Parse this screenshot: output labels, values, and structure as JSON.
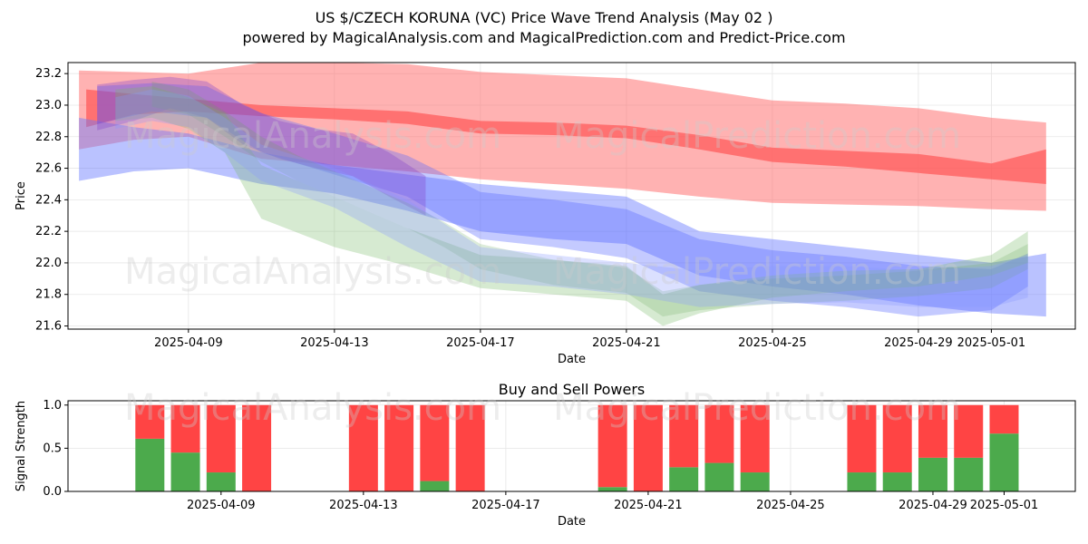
{
  "title": "US $/CZECH KORUNA (VC) Price Wave Trend Analysis (May 02 )",
  "subtitle": "powered by MagicalAnalysis.com and MagicalPrediction.com and Predict-Price.com",
  "watermarks": [
    "MagicalAnalysis.com",
    "MagicalPrediction.com"
  ],
  "chart_data": [
    {
      "type": "area",
      "title": "",
      "xlabel": "Date",
      "ylabel": "Price",
      "ylim": [
        21.58,
        23.27
      ],
      "yticks": [
        21.6,
        21.8,
        22.0,
        22.2,
        22.4,
        22.6,
        22.8,
        23.0,
        23.2
      ],
      "xticks": [
        {
          "day": 3,
          "label": "2025-04-09"
        },
        {
          "day": 7,
          "label": "2025-04-13"
        },
        {
          "day": 11,
          "label": "2025-04-17"
        },
        {
          "day": 15,
          "label": "2025-04-21"
        },
        {
          "day": 19,
          "label": "2025-04-25"
        },
        {
          "day": 23,
          "label": "2025-04-29"
        },
        {
          "day": 25,
          "label": "2025-05-01"
        }
      ],
      "xrange_days": [
        -0.3,
        27.3
      ],
      "grid": true,
      "bands": [
        {
          "name": "red-wide",
          "color": "#ff6666",
          "opacity": 0.5,
          "x": [
            0,
            1.5,
            3,
            5,
            7,
            9,
            11,
            13,
            15,
            17,
            19,
            21,
            23,
            25,
            26.5
          ],
          "upper": [
            23.22,
            23.21,
            23.2,
            23.27,
            23.27,
            23.26,
            23.21,
            23.19,
            23.17,
            23.1,
            23.03,
            23.01,
            22.98,
            22.92,
            22.89
          ],
          "lower": [
            22.72,
            22.78,
            22.8,
            22.66,
            22.62,
            22.58,
            22.53,
            22.5,
            22.47,
            22.42,
            22.38,
            22.37,
            22.36,
            22.34,
            22.33
          ]
        },
        {
          "name": "red-narrow",
          "color": "#ff5555",
          "opacity": 0.7,
          "x": [
            0.2,
            1.5,
            3,
            5,
            7,
            9,
            11,
            13,
            15,
            17,
            19,
            21,
            23,
            25,
            26.5
          ],
          "upper": [
            23.1,
            23.07,
            23.04,
            23.0,
            22.98,
            22.96,
            22.9,
            22.89,
            22.87,
            22.81,
            22.73,
            22.71,
            22.69,
            22.63,
            22.72
          ],
          "lower": [
            22.86,
            22.94,
            22.96,
            22.93,
            22.91,
            22.88,
            22.82,
            22.81,
            22.79,
            22.72,
            22.64,
            22.61,
            22.57,
            22.53,
            22.5
          ]
        },
        {
          "name": "blue-long",
          "color": "#6677ff",
          "opacity": 0.45,
          "x": [
            0,
            1.5,
            3,
            5,
            7,
            9,
            11,
            13,
            15,
            17,
            19,
            21,
            23,
            25,
            26.5
          ],
          "upper": [
            22.92,
            22.86,
            22.82,
            22.7,
            22.62,
            22.56,
            22.5,
            22.46,
            22.42,
            22.2,
            22.15,
            22.1,
            22.05,
            22.0,
            22.06
          ],
          "lower": [
            22.52,
            22.58,
            22.6,
            22.5,
            22.44,
            22.33,
            22.2,
            22.15,
            22.12,
            21.92,
            21.85,
            21.8,
            21.73,
            21.68,
            21.66
          ]
        },
        {
          "name": "blue-mid",
          "color": "#5566ff",
          "opacity": 0.35,
          "x": [
            0.5,
            2,
            3.5,
            5,
            7,
            9,
            11,
            13,
            15,
            17,
            19,
            21,
            23,
            25,
            26
          ],
          "upper": [
            23.12,
            23.14,
            23.12,
            22.95,
            22.82,
            22.68,
            22.45,
            22.4,
            22.34,
            22.15,
            22.08,
            22.04,
            21.98,
            21.96,
            22.06
          ],
          "lower": [
            22.88,
            22.96,
            22.92,
            22.7,
            22.56,
            22.42,
            22.15,
            22.1,
            22.03,
            21.82,
            21.76,
            21.72,
            21.66,
            21.7,
            21.85
          ]
        },
        {
          "name": "purple",
          "color": "#8844cc",
          "opacity": 0.35,
          "x": [
            0.5,
            1.5,
            2.5,
            3.5,
            4.5,
            5.5,
            6.5,
            7.5,
            8.5,
            9.5
          ],
          "upper": [
            23.13,
            23.16,
            23.18,
            23.15,
            23.0,
            22.9,
            22.85,
            22.82,
            22.7,
            22.55
          ],
          "lower": [
            22.84,
            22.9,
            22.98,
            22.92,
            22.75,
            22.66,
            22.6,
            22.55,
            22.42,
            22.3
          ]
        },
        {
          "name": "green-a",
          "color": "#77bb66",
          "opacity": 0.3,
          "x": [
            1,
            2,
            3,
            4,
            5,
            7,
            9,
            11,
            13,
            15,
            16,
            17,
            19,
            21,
            23,
            25,
            26
          ],
          "upper": [
            23.1,
            23.12,
            23.05,
            22.95,
            22.62,
            22.42,
            22.22,
            22.05,
            22.02,
            21.98,
            21.8,
            21.86,
            21.92,
            21.95,
            21.96,
            22.05,
            22.2
          ],
          "lower": [
            22.9,
            22.92,
            22.85,
            22.7,
            22.28,
            22.1,
            21.98,
            21.84,
            21.8,
            21.76,
            21.6,
            21.68,
            21.78,
            21.82,
            21.85,
            21.92,
            22.0
          ]
        },
        {
          "name": "green-b",
          "color": "#66aa55",
          "opacity": 0.22,
          "x": [
            2,
            3,
            4,
            5,
            6,
            7,
            8,
            9,
            10,
            11,
            13,
            15,
            16,
            17,
            19,
            21,
            23,
            25,
            26
          ],
          "upper": [
            23.15,
            23.1,
            22.96,
            22.8,
            22.68,
            22.58,
            22.48,
            22.38,
            22.26,
            22.12,
            22.02,
            21.97,
            21.82,
            21.86,
            21.9,
            21.92,
            21.95,
            22.0,
            22.12
          ]
        },
        {
          "name": "blue-light",
          "color": "#8899ff",
          "opacity": 0.3,
          "x": [
            1,
            2,
            3,
            4,
            5,
            7,
            9,
            11,
            13,
            15,
            17,
            19,
            21,
            23,
            25,
            26
          ],
          "upper": [
            23.05,
            23.1,
            23.06,
            22.92,
            22.75,
            22.6,
            22.4,
            22.1,
            22.05,
            22.0,
            21.95,
            21.98,
            21.98,
            21.95,
            21.98,
            22.05
          ],
          "lower": [
            22.85,
            22.9,
            22.86,
            22.7,
            22.52,
            22.35,
            22.1,
            21.88,
            21.85,
            21.8,
            21.72,
            21.74,
            21.75,
            21.72,
            21.72,
            21.78
          ]
        }
      ]
    },
    {
      "type": "bar",
      "title": "Buy and Sell Powers",
      "xlabel": "Date",
      "ylabel": "Signal Strength",
      "ylim": [
        0,
        1.05
      ],
      "yticks": [
        0.0,
        0.5,
        1.0
      ],
      "xticks": [
        {
          "day": 3,
          "label": "2025-04-09"
        },
        {
          "day": 7,
          "label": "2025-04-13"
        },
        {
          "day": 11,
          "label": "2025-04-17"
        },
        {
          "day": 15,
          "label": "2025-04-21"
        },
        {
          "day": 19,
          "label": "2025-04-25"
        },
        {
          "day": 23,
          "label": "2025-04-29"
        },
        {
          "day": 25,
          "label": "2025-05-01"
        }
      ],
      "xrange_days": [
        -1.3,
        27.0
      ],
      "grid": true,
      "series": [
        {
          "name": "Buy",
          "color": "#4caa4c"
        },
        {
          "name": "Sell",
          "color": "#ff4444"
        }
      ],
      "days": [
        1,
        2,
        3,
        4,
        7,
        8,
        9,
        10,
        14,
        15,
        16,
        17,
        18,
        21,
        22,
        23,
        24,
        25,
        26
      ],
      "buy": [
        0.61,
        0.45,
        0.22,
        0.0,
        0.0,
        0.0,
        0.12,
        0.0,
        0.05,
        0.0,
        0.28,
        0.33,
        0.22,
        0.22,
        0.22,
        0.39,
        0.39,
        0.67,
        0.0
      ],
      "total": [
        1.0,
        1.0,
        1.0,
        1.0,
        1.0,
        1.0,
        1.0,
        1.0,
        1.0,
        1.0,
        1.0,
        1.0,
        1.0,
        1.0,
        1.0,
        1.0,
        1.0,
        1.0,
        0.0
      ]
    }
  ]
}
